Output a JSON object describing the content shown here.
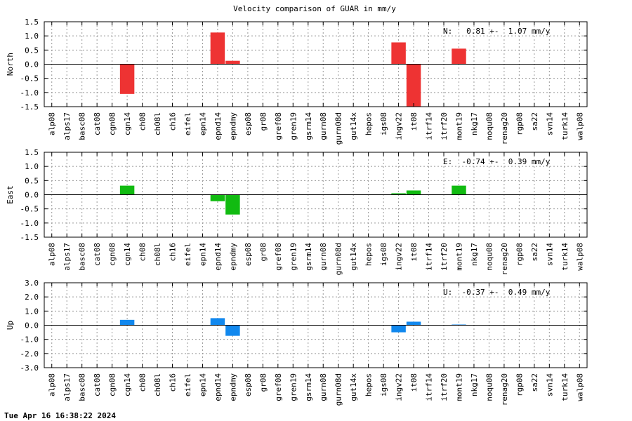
{
  "chart_data": {
    "type": "bar",
    "title": "Velocity comparison of GUAR in mm/y",
    "categories": [
      "alp08",
      "alps17",
      "basc08",
      "cat08",
      "cgn08",
      "cgn14",
      "ch08",
      "ch08l",
      "ch16",
      "eifel",
      "epn14",
      "epnd14",
      "epndmy",
      "esp08",
      "gr08",
      "gref08",
      "gren19",
      "gsrm14",
      "gurn08",
      "gurn08d",
      "gut14x",
      "hepos",
      "igs08",
      "ingv22",
      "it08",
      "itrf14",
      "itrf20",
      "mont19",
      "nkg17",
      "noqu08",
      "renag20",
      "rgp08",
      "sa22",
      "svn14",
      "turk14",
      "walp08"
    ],
    "grid": true,
    "panels": [
      {
        "ylabel": "North",
        "color": "#ee3333",
        "ylim": [
          -1.5,
          1.5
        ],
        "yticks": [
          "1.5",
          "1.0",
          "0.5",
          "0.0",
          "-0.5",
          "-1.0",
          "-1.5"
        ],
        "annotation": "N:   0.81 +-  1.07 mm/y",
        "values": {
          "cgn14": -1.05,
          "epnd14": 1.12,
          "epndmy": 0.12,
          "ingv22": 0.77,
          "it08": -1.5,
          "mont19": 0.55
        }
      },
      {
        "ylabel": "East",
        "color": "#11bb11",
        "ylim": [
          -1.5,
          1.5
        ],
        "yticks": [
          "1.5",
          "1.0",
          "0.5",
          "0.0",
          "-0.5",
          "-1.0",
          "-1.5"
        ],
        "annotation": "E:  -0.74 +-  0.39 mm/y",
        "values": {
          "cgn14": 0.32,
          "epnd14": -0.23,
          "epndmy": -0.7,
          "ingv22": 0.05,
          "it08": 0.15,
          "mont19": 0.32
        }
      },
      {
        "ylabel": "Up",
        "color": "#1188ee",
        "ylim": [
          -3.0,
          3.0
        ],
        "yticks": [
          "3.0",
          "2.0",
          "1.0",
          "0.0",
          "-1.0",
          "-2.0",
          "-3.0"
        ],
        "annotation": "U:  -0.37 +-  0.49 mm/y",
        "values": {
          "cgn14": 0.38,
          "epnd14": 0.5,
          "epndmy": -0.75,
          "ingv22": -0.5,
          "it08": 0.25,
          "mont19": 0.05
        }
      }
    ]
  },
  "footer": {
    "timestamp": "Tue Apr 16 16:38:22 2024"
  }
}
